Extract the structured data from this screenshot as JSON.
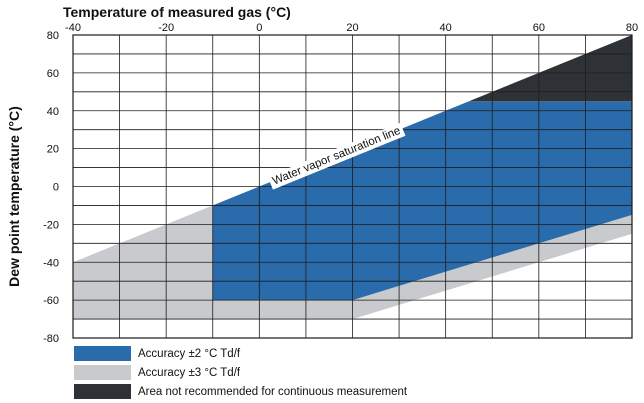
{
  "chart_data": {
    "type": "area",
    "xlabel": "Temperature of measured gas (°C)",
    "ylabel": "Dew point temperature (°C)",
    "xlim": [
      -40,
      80
    ],
    "ylim": [
      -80,
      80
    ],
    "x_ticks": [
      "-40",
      "-20",
      "0",
      "20",
      "40",
      "60",
      "80"
    ],
    "y_ticks": [
      "80",
      "60",
      "40",
      "20",
      "0",
      "-20",
      "-40",
      "-60",
      "-80"
    ],
    "x_grid_step": 10,
    "y_grid_step": 10,
    "grid": true,
    "annotation": "Water vapor saturation line",
    "saturation_line": [
      [
        -10,
        -10
      ],
      [
        80,
        80
      ]
    ],
    "series": [
      {
        "name": "Accuracy ±3 °C Td/f",
        "color": "#c8cacd",
        "polygon": [
          [
            -40,
            -40
          ],
          [
            -10,
            -10
          ],
          [
            -10,
            -60
          ],
          [
            20,
            -60
          ],
          [
            80,
            -15
          ],
          [
            80,
            -25
          ],
          [
            20,
            -70
          ],
          [
            -40,
            -70
          ]
        ]
      },
      {
        "name": "Accuracy ±2 °C Td/f",
        "color": "#2a6bab",
        "polygon": [
          [
            -10,
            -10
          ],
          [
            45,
            45
          ],
          [
            80,
            45
          ],
          [
            80,
            -15
          ],
          [
            20,
            -60
          ],
          [
            -10,
            -60
          ]
        ]
      },
      {
        "name": "Area not recommended for continuous measurement",
        "color": "#2e3236",
        "polygon": [
          [
            45,
            45
          ],
          [
            80,
            80
          ],
          [
            80,
            45
          ]
        ]
      }
    ],
    "legend_placement": "bottom-left"
  }
}
